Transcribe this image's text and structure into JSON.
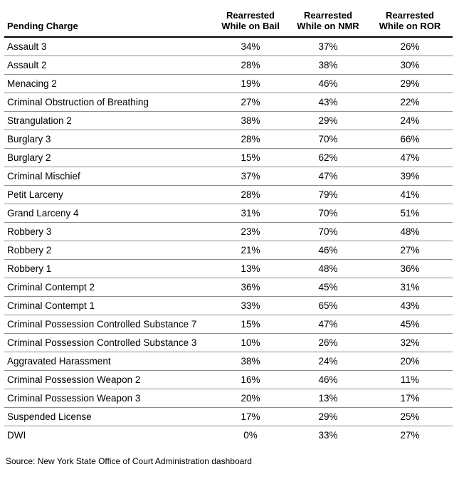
{
  "chart_data": {
    "type": "table",
    "columns": [
      {
        "id": "charge",
        "label": "Pending Charge",
        "header_display": "Pending Charge"
      },
      {
        "id": "bail",
        "label": "Rearrested While on Bail",
        "header_display": "Rearrested\nWhile on Bail"
      },
      {
        "id": "nmr",
        "label": "Rearrested While on NMR",
        "header_display": "Rearrested\nWhile on NMR"
      },
      {
        "id": "ror",
        "label": "Rearrested While on ROR",
        "header_display": "Rearrested\nWhile on ROR"
      }
    ],
    "rows": [
      [
        "Assault 3",
        "34%",
        "37%",
        "26%"
      ],
      [
        "Assault 2",
        "28%",
        "38%",
        "30%"
      ],
      [
        "Menacing 2",
        "19%",
        "46%",
        "29%"
      ],
      [
        "Criminal Obstruction of Breathing",
        "27%",
        "43%",
        "22%"
      ],
      [
        "Strangulation 2",
        "38%",
        "29%",
        "24%"
      ],
      [
        "Burglary 3",
        "28%",
        "70%",
        "66%"
      ],
      [
        "Burglary 2",
        "15%",
        "62%",
        "47%"
      ],
      [
        "Criminal Mischief",
        "37%",
        "47%",
        "39%"
      ],
      [
        "Petit Larceny",
        "28%",
        "79%",
        "41%"
      ],
      [
        "Grand Larceny 4",
        "31%",
        "70%",
        "51%"
      ],
      [
        "Robbery 3",
        "23%",
        "70%",
        "48%"
      ],
      [
        "Robbery 2",
        "21%",
        "46%",
        "27%"
      ],
      [
        "Robbery 1",
        "13%",
        "48%",
        "36%"
      ],
      [
        "Criminal Contempt 2",
        "36%",
        "45%",
        "31%"
      ],
      [
        "Criminal Contempt 1",
        "33%",
        "65%",
        "43%"
      ],
      [
        "Criminal Possession Controlled Substance 7",
        "15%",
        "47%",
        "45%"
      ],
      [
        "Criminal Possession Controlled Substance 3",
        "10%",
        "26%",
        "32%"
      ],
      [
        "Aggravated Harassment",
        "38%",
        "24%",
        "20%"
      ],
      [
        "Criminal Possession Weapon 2",
        "16%",
        "46%",
        "11%"
      ],
      [
        "Criminal Possession Weapon 3",
        "20%",
        "13%",
        "17%"
      ],
      [
        "Suspended License",
        "17%",
        "29%",
        "25%"
      ],
      [
        "DWI",
        "0%",
        "33%",
        "27%"
      ]
    ],
    "source": "Source: New York State Office of Court Administration dashboard"
  },
  "colors": {
    "header_rule": "#000000",
    "row_rule": "#8c8c8c",
    "text": "#000000"
  }
}
